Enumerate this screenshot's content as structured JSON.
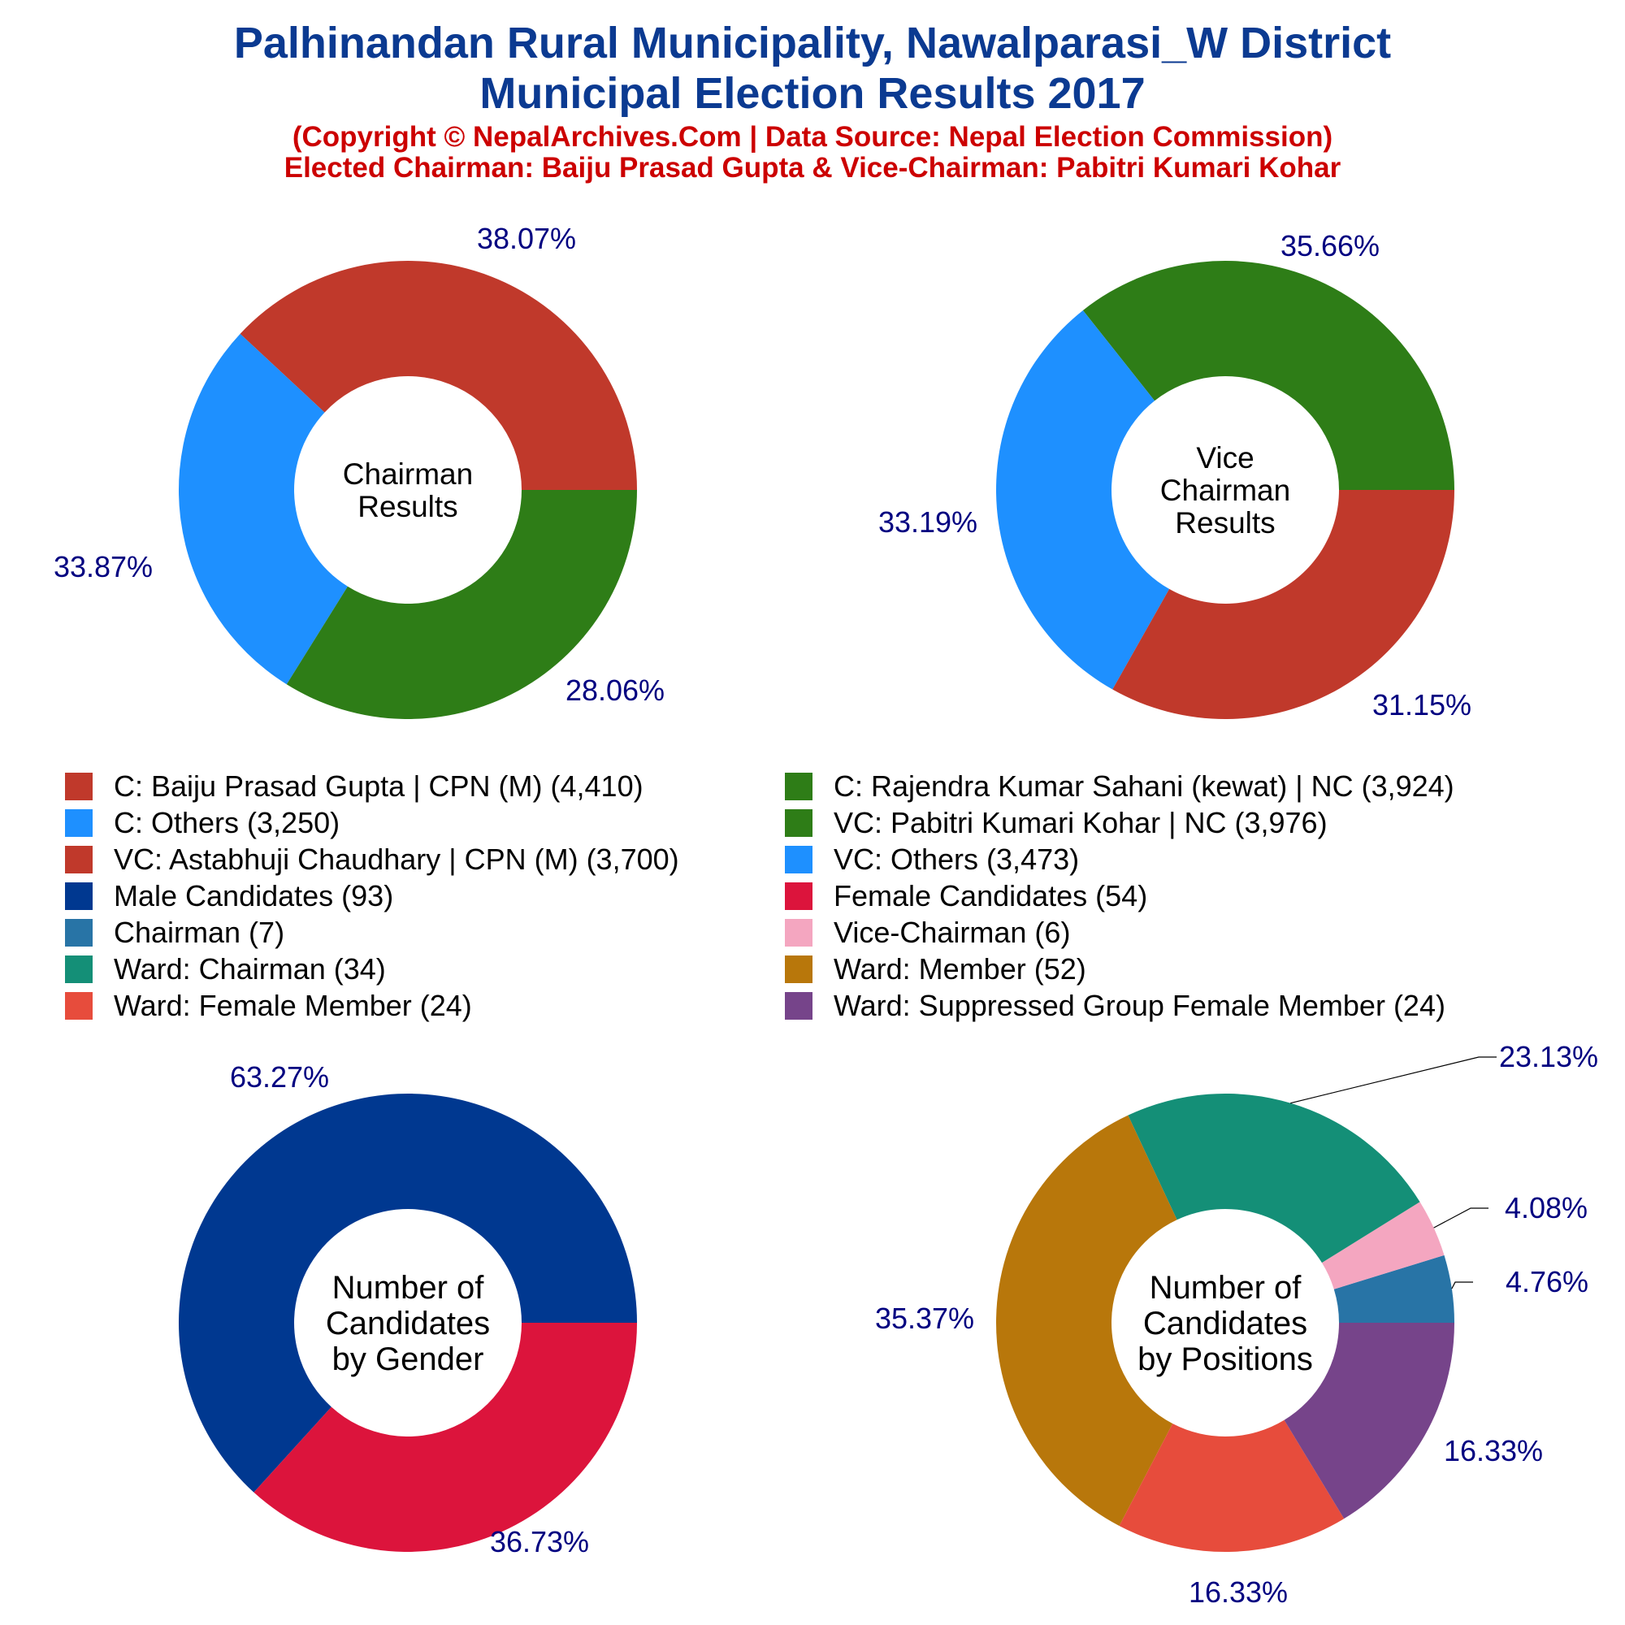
{
  "header": {
    "title_line1": "Palhinandan Rural Municipality, Nawalparasi_W District",
    "title_line2": "Municipal Election Results 2017",
    "subtitle_line1": "(Copyright © NepalArchives.Com | Data Source: Nepal Election Commission)",
    "subtitle_line2": "Elected Chairman: Baiju Prasad Gupta & Vice-Chairman: Pabitri Kumari Kohar"
  },
  "colors": {
    "title": "#0B3A91",
    "subtitle": "#CC0000",
    "percent_label": "#000080"
  },
  "chart_data": [
    {
      "type": "donut",
      "center_label": [
        "Chairman",
        "Results"
      ],
      "slices": [
        {
          "label": "C: Baiju Prasad Gupta | CPN (M)",
          "value": 4410,
          "percent_label": "38.07%",
          "color": "#C0392B"
        },
        {
          "label": "C: Others",
          "value": 3250,
          "percent_label": "28.06%",
          "color": "#1E90FF"
        },
        {
          "label": "C: Rajendra Kumar Sahani (kewat) | NC",
          "value": 3924,
          "percent_label": "33.87%",
          "color": "#2E7D17"
        }
      ]
    },
    {
      "type": "donut",
      "center_label": [
        "Vice",
        "Chairman",
        "Results"
      ],
      "slices": [
        {
          "label": "VC: Pabitri Kumari Kohar | NC",
          "value": 3976,
          "percent_label": "35.66%",
          "color": "#2E7D17"
        },
        {
          "label": "VC: Others",
          "value": 3473,
          "percent_label": "31.15%",
          "color": "#1E90FF"
        },
        {
          "label": "VC: Astabhuji Chaudhary | CPN (M)",
          "value": 3700,
          "percent_label": "33.19%",
          "color": "#C0392B"
        }
      ]
    },
    {
      "type": "donut",
      "center_label": [
        "Number of",
        "Candidates",
        "by Gender"
      ],
      "slices": [
        {
          "label": "Male Candidates",
          "value": 93,
          "percent_label": "63.27%",
          "color": "#003890"
        },
        {
          "label": "Female Candidates",
          "value": 54,
          "percent_label": "36.73%",
          "color": "#DC143C"
        }
      ]
    },
    {
      "type": "donut",
      "center_label": [
        "Number of",
        "Candidates",
        "by Positions"
      ],
      "slices": [
        {
          "label": "Chairman",
          "value": 7,
          "percent_label": "4.76%",
          "color": "#2874A6"
        },
        {
          "label": "Vice-Chairman",
          "value": 6,
          "percent_label": "4.08%",
          "color": "#F4A6C0"
        },
        {
          "label": "Ward: Chairman",
          "value": 34,
          "percent_label": "23.13%",
          "color": "#148F77"
        },
        {
          "label": "Ward: Member",
          "value": 52,
          "percent_label": "35.37%",
          "color": "#B8770B"
        },
        {
          "label": "Ward: Female Member",
          "value": 24,
          "percent_label": "16.33%",
          "color": "#E74C3C"
        },
        {
          "label": "Ward: Suppressed Group Female Member",
          "value": 24,
          "percent_label": "16.33%",
          "color": "#76448A"
        }
      ]
    }
  ],
  "legend": [
    {
      "label": "C: Baiju Prasad Gupta | CPN (M) (4,410)",
      "color": "#C0392B"
    },
    {
      "label": "C: Rajendra Kumar Sahani (kewat) | NC (3,924)",
      "color": "#2E7D17"
    },
    {
      "label": "C: Others (3,250)",
      "color": "#1E90FF"
    },
    {
      "label": "VC: Pabitri Kumari Kohar | NC (3,976)",
      "color": "#2E7D17"
    },
    {
      "label": "VC: Astabhuji Chaudhary | CPN (M) (3,700)",
      "color": "#C0392B"
    },
    {
      "label": "VC: Others (3,473)",
      "color": "#1E90FF"
    },
    {
      "label": "Male Candidates (93)",
      "color": "#003890"
    },
    {
      "label": "Female Candidates (54)",
      "color": "#DC143C"
    },
    {
      "label": "Chairman (7)",
      "color": "#2874A6"
    },
    {
      "label": "Vice-Chairman (6)",
      "color": "#F4A6C0"
    },
    {
      "label": "Ward: Chairman (34)",
      "color": "#148F77"
    },
    {
      "label": "Ward: Member (52)",
      "color": "#B8770B"
    },
    {
      "label": "Ward: Female Member (24)",
      "color": "#E74C3C"
    },
    {
      "label": "Ward: Suppressed Group Female Member (24)",
      "color": "#76448A"
    }
  ]
}
